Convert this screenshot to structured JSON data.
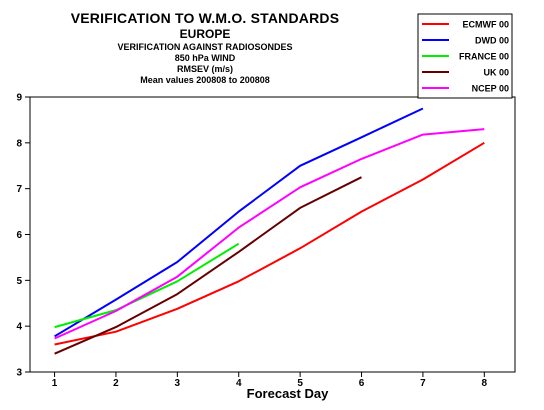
{
  "header": {
    "title": "VERIFICATION TO W.M.O. STANDARDS",
    "region": "EUROPE",
    "subtitle_lines": [
      "VERIFICATION AGAINST RADIOSONDES",
      "850 hPa WIND",
      "RMSEV (m/s)",
      "Mean values 200808 to 200808"
    ]
  },
  "chart_data": {
    "type": "line",
    "title": "VERIFICATION TO W.M.O. STANDARDS",
    "xlabel": "Forecast Day",
    "ylabel": "",
    "xlim": [
      0.6,
      8.5
    ],
    "ylim": [
      3,
      9
    ],
    "x_ticks": [
      1,
      2,
      3,
      4,
      5,
      6,
      7,
      8
    ],
    "y_ticks": [
      3,
      4,
      5,
      6,
      7,
      8,
      9
    ],
    "grid": false,
    "legend_position": "top-right",
    "series": [
      {
        "name": "ECMWF 00",
        "color": "#ff0000",
        "x": [
          1,
          2,
          3,
          4,
          5,
          6,
          7,
          8
        ],
        "values": [
          3.6,
          3.88,
          4.38,
          4.98,
          5.7,
          6.5,
          7.2,
          8.0
        ]
      },
      {
        "name": "DWD 00",
        "color": "#0000ff",
        "x": [
          1,
          2,
          3,
          4,
          5,
          6,
          7
        ],
        "values": [
          3.78,
          4.58,
          5.4,
          6.5,
          7.5,
          8.12,
          8.75
        ]
      },
      {
        "name": "FRANCE 00",
        "color": "#00ee00",
        "x": [
          1,
          2,
          3,
          4
        ],
        "values": [
          3.98,
          4.35,
          4.98,
          5.8
        ]
      },
      {
        "name": "UK 00",
        "color": "#660000",
        "x": [
          1,
          2,
          3,
          4,
          5,
          6
        ],
        "values": [
          3.4,
          3.98,
          4.7,
          5.62,
          6.58,
          7.25
        ]
      },
      {
        "name": "NCEP 00",
        "color": "#ff00ff",
        "x": [
          1,
          2,
          3,
          4,
          5,
          6,
          7,
          8
        ],
        "values": [
          3.73,
          4.33,
          5.08,
          6.15,
          7.03,
          7.65,
          8.18,
          8.3
        ]
      }
    ]
  }
}
